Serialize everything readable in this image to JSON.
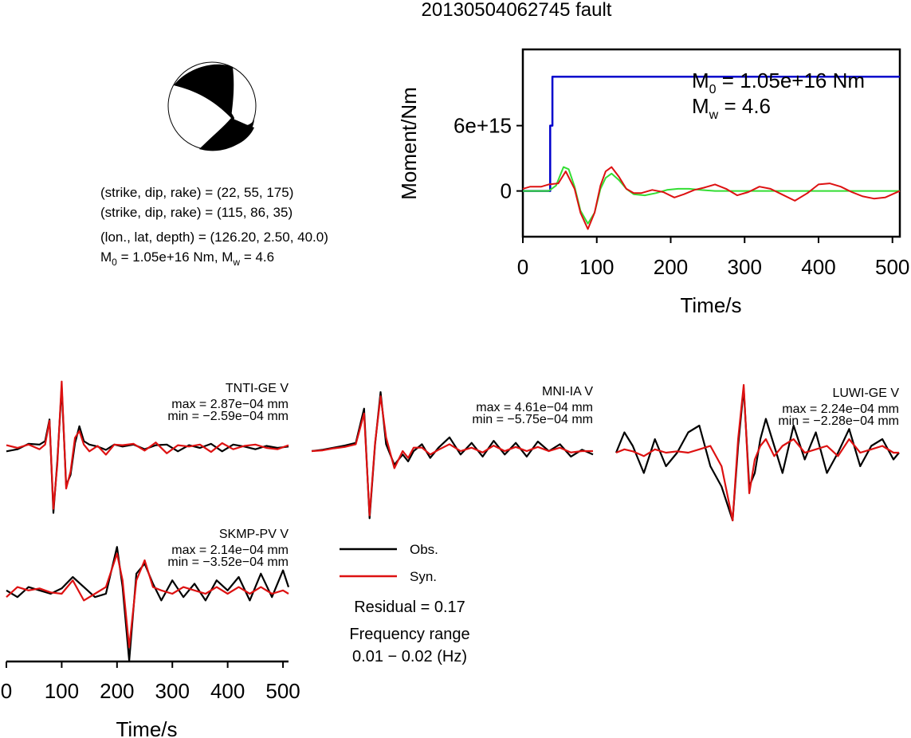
{
  "title": "20130504062745 fault",
  "focal_mechanism": {
    "planes": [
      {
        "label": "(strike, dip, rake) = ",
        "value": "(22, 55, 175)"
      },
      {
        "label": "(strike, dip, rake) = ",
        "value": "(115, 86, 35)"
      }
    ],
    "location": {
      "label": "(lon., lat, depth) = ",
      "value": "(126.20, 2.50, 40.0)"
    },
    "moment_line": {
      "m0": "1.05e+16",
      "m0_unit": "Nm",
      "mw": "4.6"
    }
  },
  "moment_plot": {
    "m0_value": "1.05e+16",
    "m0_unit": "Nm",
    "mw_value": "4.6",
    "colors": {
      "cumulative": "#0000cc",
      "synthetic": "#33dd33",
      "observed": "#dd1111"
    }
  },
  "waveforms": {
    "axis_labels": {
      "x": "Time/s"
    },
    "stations": [
      {
        "name": "TNTI-GE V",
        "max": "2.87e−04 mm",
        "min": "−2.59e−04 mm"
      },
      {
        "name": "MNI-IA V",
        "max": "4.61e−04 mm",
        "min": "−5.75e−04 mm"
      },
      {
        "name": "LUWI-GE V",
        "max": "2.24e−04 mm",
        "min": "−2.28e−04 mm"
      },
      {
        "name": "SKMP-PV V",
        "max": "2.14e−04 mm",
        "min": "−3.52e−04 mm"
      }
    ],
    "prefix_max": "max = ",
    "prefix_min": "min = ",
    "legend": [
      {
        "label": "Obs.",
        "color": "#000000"
      },
      {
        "label": "Syn.",
        "color": "#dd1111"
      }
    ],
    "residual": "Residual = 0.17",
    "frequency_label": "Frequency range",
    "frequency_value": "0.01 − 0.02 (Hz)"
  },
  "chart_data": [
    {
      "type": "line",
      "title": "",
      "xlabel": "Time/s",
      "ylabel": "Moment/Nm",
      "xlim": [
        0,
        510
      ],
      "ylim": [
        -4200000000000000.0,
        1.3e+16
      ],
      "x_ticks": [
        0,
        100,
        200,
        300,
        400,
        500
      ],
      "y_ticks": [
        {
          "value": 0,
          "label": "0"
        },
        {
          "value": 6000000000000000.0,
          "label": "6e+15"
        }
      ],
      "series": [
        {
          "color": "#0000cc",
          "x": [
            0,
            36,
            37,
            37,
            40,
            40,
            510
          ],
          "y": [
            0,
            0,
            0,
            6000000000000000.0,
            6000000000000000.0,
            1.05e+16,
            1.05e+16
          ]
        },
        {
          "color": "#33dd33",
          "x": [
            0,
            35,
            45,
            55,
            62,
            70,
            78,
            88,
            97,
            105,
            112,
            120,
            130,
            140,
            150,
            165,
            180,
            195,
            210,
            225,
            240,
            260,
            280,
            300,
            510
          ],
          "y": [
            0,
            0,
            500000000000000.0,
            2200000000000000.0,
            2000000000000000.0,
            400000000000000.0,
            -1800000000000000.0,
            -3000000000000000.0,
            -2000000000000000.0,
            200000000000000.0,
            1200000000000000.0,
            1600000000000000.0,
            1000000000000000.0,
            200000000000000.0,
            -300000000000000.0,
            -400000000000000.0,
            -200000000000000.0,
            100000000000000.0,
            200000000000000.0,
            200000000000000.0,
            100000000000000.0,
            0,
            0,
            0,
            0
          ]
        },
        {
          "color": "#dd1111",
          "x": [
            0,
            10,
            25,
            35,
            48,
            58,
            70,
            78,
            88,
            97,
            105,
            112,
            120,
            130,
            140,
            150,
            160,
            175,
            190,
            205,
            218,
            232,
            245,
            260,
            275,
            290,
            305,
            320,
            335,
            350,
            368,
            385,
            400,
            415,
            430,
            445,
            460,
            475,
            490,
            510
          ],
          "y": [
            200000000000000.0,
            400000000000000.0,
            400000000000000.0,
            600000000000000.0,
            700000000000000.0,
            1800000000000000.0,
            200000000000000.0,
            -2000000000000000.0,
            -3500000000000000.0,
            -2000000000000000.0,
            500000000000000.0,
            1800000000000000.0,
            2200000000000000.0,
            1300000000000000.0,
            200000000000000.0,
            -200000000000000.0,
            -200000000000000.0,
            100000000000000.0,
            -100000000000000.0,
            -600000000000000.0,
            -300000000000000.0,
            100000000000000.0,
            300000000000000.0,
            600000000000000.0,
            200000000000000.0,
            -400000000000000.0,
            -100000000000000.0,
            400000000000000.0,
            200000000000000.0,
            -300000000000000.0,
            -900000000000000.0,
            -200000000000000.0,
            600000000000000.0,
            700000000000000.0,
            400000000000000.0,
            -100000000000000.0,
            -500000000000000.0,
            -700000000000000.0,
            -600000000000000.0,
            0
          ]
        }
      ]
    },
    {
      "type": "line",
      "title": "TNTI-GE V",
      "xlabel": "",
      "ylabel": "",
      "xlim": [
        0,
        510
      ],
      "ylim": [
        -1,
        1
      ],
      "series": [
        {
          "color": "#000000",
          "x": [
            0,
            20,
            40,
            60,
            70,
            78,
            85,
            92,
            100,
            108,
            116,
            124,
            132,
            140,
            150,
            165,
            180,
            195,
            210,
            230,
            250,
            270,
            290,
            310,
            330,
            350,
            370,
            390,
            410,
            430,
            450,
            470,
            490,
            510
          ],
          "y": [
            -0.05,
            -0.02,
            0.06,
            0.05,
            0.1,
            0.42,
            -0.96,
            -0.2,
            0.9,
            -0.55,
            -0.4,
            0.07,
            0.32,
            0.1,
            0.05,
            0.02,
            -0.03,
            0.05,
            0.02,
            0.05,
            -0.02,
            0.04,
            0.05,
            -0.05,
            0.04,
            0.0,
            0.06,
            -0.05,
            0.05,
            0.02,
            -0.02,
            0.03,
            0.0,
            0.02
          ]
        },
        {
          "color": "#dd1111",
          "x": [
            0,
            20,
            40,
            60,
            70,
            78,
            85,
            92,
            100,
            108,
            116,
            124,
            132,
            140,
            150,
            165,
            180,
            195,
            210,
            230,
            250,
            270,
            290,
            310,
            330,
            350,
            370,
            390,
            410,
            430,
            450,
            470,
            490,
            510
          ],
          "y": [
            0.04,
            0.0,
            0.05,
            -0.02,
            0.05,
            0.4,
            -0.9,
            -0.25,
            0.98,
            -0.6,
            -0.35,
            0.15,
            0.25,
            0.05,
            -0.05,
            0.03,
            -0.1,
            0.05,
            0.04,
            0.06,
            -0.04,
            0.08,
            -0.08,
            0.04,
            0.02,
            0.05,
            -0.06,
            0.07,
            -0.02,
            0.03,
            0.05,
            0.0,
            -0.02,
            0.04
          ]
        }
      ]
    },
    {
      "type": "line",
      "title": "MNI-IA V",
      "xlabel": "",
      "ylabel": "",
      "xlim": [
        0,
        510
      ],
      "ylim": [
        -1,
        1
      ],
      "series": [
        {
          "color": "#000000",
          "x": [
            0,
            20,
            40,
            60,
            80,
            95,
            105,
            115,
            125,
            135,
            150,
            165,
            175,
            185,
            200,
            215,
            230,
            250,
            270,
            290,
            310,
            330,
            350,
            370,
            390,
            410,
            430,
            450,
            470,
            490,
            510
          ],
          "y": [
            0.0,
            0.02,
            0.05,
            0.08,
            0.12,
            0.62,
            -0.98,
            0.1,
            0.86,
            0.1,
            -0.2,
            -0.05,
            -0.15,
            0.0,
            0.1,
            -0.1,
            0.05,
            0.2,
            -0.05,
            0.12,
            -0.08,
            0.15,
            -0.05,
            0.12,
            -0.08,
            0.14,
            0.0,
            0.1,
            -0.08,
            0.02,
            -0.05
          ]
        },
        {
          "color": "#dd1111",
          "x": [
            0,
            20,
            40,
            60,
            80,
            95,
            105,
            115,
            125,
            135,
            150,
            165,
            175,
            185,
            200,
            215,
            230,
            250,
            270,
            290,
            310,
            330,
            350,
            370,
            390,
            410,
            430,
            450,
            470,
            490,
            510
          ],
          "y": [
            0.0,
            0.01,
            0.04,
            0.06,
            0.1,
            0.55,
            -0.94,
            0.12,
            0.8,
            0.2,
            -0.25,
            0.0,
            -0.1,
            0.05,
            0.05,
            -0.05,
            0.02,
            0.1,
            0.0,
            0.05,
            -0.02,
            0.08,
            0.0,
            0.06,
            0.0,
            0.06,
            0.0,
            0.05,
            -0.02,
            0.0,
            0.0
          ]
        }
      ]
    },
    {
      "type": "line",
      "title": "LUWI-GE V",
      "xlabel": "",
      "ylabel": "",
      "xlim": [
        0,
        510
      ],
      "ylim": [
        -1,
        1
      ],
      "series": [
        {
          "color": "#000000",
          "x": [
            0,
            15,
            30,
            50,
            70,
            90,
            110,
            130,
            150,
            170,
            190,
            210,
            220,
            230,
            240,
            250,
            260,
            270,
            285,
            300,
            320,
            340,
            360,
            380,
            400,
            420,
            440,
            460,
            480,
            500,
            510
          ],
          "y": [
            0.0,
            0.3,
            0.1,
            -0.3,
            0.2,
            -0.2,
            0.0,
            0.3,
            0.4,
            -0.2,
            -0.5,
            -1.0,
            0.1,
            0.95,
            -0.5,
            -0.3,
            0.2,
            0.5,
            0.1,
            -0.3,
            0.4,
            -0.1,
            0.3,
            -0.3,
            0.0,
            0.35,
            -0.2,
            0.1,
            0.2,
            -0.1,
            0.0
          ]
        },
        {
          "color": "#dd1111",
          "x": [
            0,
            15,
            30,
            50,
            70,
            90,
            110,
            130,
            150,
            170,
            190,
            210,
            220,
            230,
            240,
            250,
            260,
            270,
            285,
            300,
            320,
            340,
            360,
            380,
            400,
            420,
            440,
            460,
            480,
            500,
            510
          ],
          "y": [
            0.0,
            0.05,
            0.02,
            -0.05,
            0.05,
            0.0,
            0.02,
            0.0,
            0.05,
            0.1,
            -0.2,
            -1.0,
            0.2,
            1.0,
            -0.6,
            -0.1,
            0.1,
            0.2,
            -0.05,
            0.1,
            0.2,
            0.0,
            0.05,
            0.1,
            -0.05,
            0.2,
            0.0,
            0.05,
            0.1,
            0.0,
            0.0
          ]
        }
      ]
    },
    {
      "type": "line",
      "title": "SKMP-PV V",
      "xlabel": "Time/s",
      "ylabel": "",
      "xlim": [
        0,
        510
      ],
      "ylim": [
        -1,
        1
      ],
      "x_ticks": [
        0,
        100,
        200,
        300,
        400,
        500
      ],
      "series": [
        {
          "color": "#000000",
          "x": [
            0,
            20,
            40,
            60,
            80,
            100,
            120,
            140,
            160,
            180,
            200,
            210,
            222,
            235,
            250,
            265,
            280,
            300,
            320,
            340,
            360,
            380,
            400,
            420,
            440,
            460,
            480,
            500,
            510
          ],
          "y": [
            0.05,
            -0.05,
            0.1,
            0.05,
            0.0,
            0.08,
            0.25,
            0.1,
            -0.05,
            0.0,
            0.7,
            0.1,
            -1.0,
            0.3,
            0.45,
            0.15,
            -0.1,
            0.2,
            -0.05,
            0.15,
            -0.1,
            0.2,
            0.05,
            0.25,
            -0.1,
            0.3,
            -0.05,
            0.35,
            0.1
          ]
        },
        {
          "color": "#dd1111",
          "x": [
            0,
            20,
            40,
            60,
            80,
            100,
            120,
            140,
            160,
            180,
            200,
            210,
            222,
            235,
            250,
            265,
            280,
            300,
            320,
            340,
            360,
            380,
            400,
            420,
            440,
            460,
            480,
            500,
            510
          ],
          "y": [
            -0.05,
            0.1,
            0.05,
            0.08,
            0.02,
            0.0,
            0.2,
            -0.1,
            0.0,
            0.1,
            0.6,
            0.2,
            -0.8,
            0.2,
            0.5,
            0.1,
            0.05,
            0.0,
            0.1,
            0.05,
            0.0,
            0.1,
            0.0,
            0.1,
            0.0,
            0.1,
            0.0,
            0.05,
            0.0
          ]
        }
      ]
    }
  ]
}
